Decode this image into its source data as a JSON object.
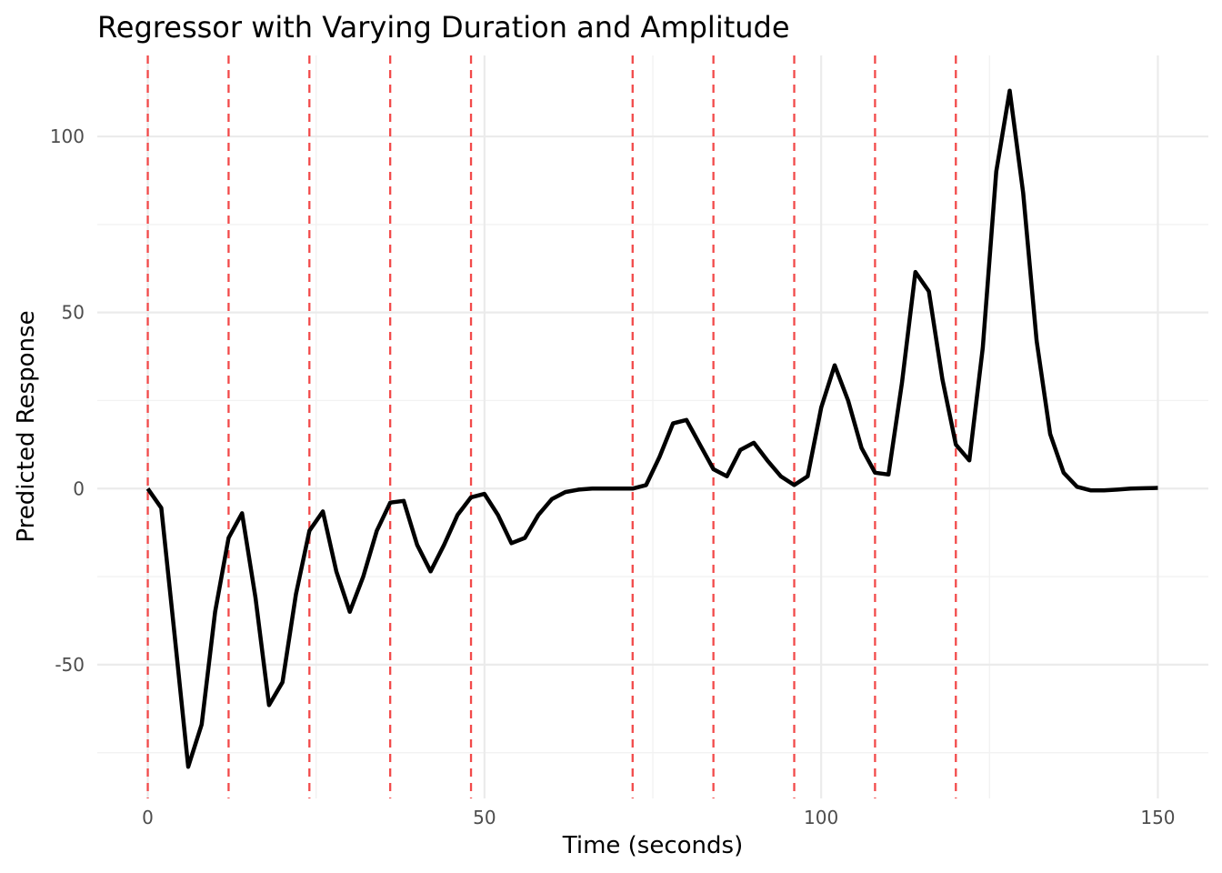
{
  "chart_data": {
    "type": "line",
    "title": "Regressor with Varying Duration and Amplitude",
    "xlabel": "Time (seconds)",
    "ylabel": "Predicted Response",
    "xlim": [
      -7.5,
      157.5
    ],
    "ylim": [
      -88,
      123
    ],
    "x_major_ticks": [
      0,
      50,
      100,
      150
    ],
    "x_minor_ticks": [
      25,
      75,
      125
    ],
    "y_major_ticks": [
      -50,
      0,
      50,
      100
    ],
    "y_minor_ticks": [
      -75,
      -25,
      25,
      75
    ],
    "x_tick_labels": [
      "0",
      "50",
      "100",
      "150"
    ],
    "y_tick_labels": [
      "-50",
      "0",
      "50",
      "100"
    ],
    "grid": true,
    "legend": "none",
    "colors": {
      "line": "#000000",
      "event_lines": "#f24a4a",
      "grid": "#ebebeb"
    },
    "event_onsets": [
      0,
      12,
      24,
      36,
      48,
      72,
      84,
      96,
      108,
      120
    ],
    "series": [
      {
        "x": [
          0,
          2,
          4,
          6,
          8,
          10,
          12,
          14,
          16,
          18,
          20,
          22,
          24,
          26,
          28,
          30,
          32,
          34,
          36,
          38,
          40,
          42,
          44,
          46,
          48,
          50,
          52,
          54,
          56,
          58,
          60,
          62,
          64,
          66,
          68,
          70,
          72,
          74,
          76,
          78,
          80,
          82,
          84,
          86,
          88,
          90,
          92,
          94,
          96,
          98,
          100,
          102,
          104,
          106,
          108,
          110,
          112,
          114,
          116,
          118,
          120,
          122,
          124,
          126,
          128,
          130,
          132,
          134,
          136,
          138,
          140,
          142,
          144,
          146,
          148,
          150
        ],
        "y": [
          0,
          -5.5,
          -42,
          -79,
          -67,
          -35,
          -14,
          -7,
          -31,
          -61.5,
          -55,
          -30,
          -12,
          -6.5,
          -23.5,
          -35,
          -25,
          -12,
          -4,
          -3.5,
          -16,
          -23.5,
          -16,
          -7.5,
          -2.5,
          -1.5,
          -7.5,
          -15.5,
          -14,
          -7.5,
          -3,
          -1,
          -0.3,
          0,
          0,
          0,
          0,
          1,
          9,
          18.5,
          19.5,
          12.5,
          5.5,
          3.5,
          11,
          13,
          8,
          3.5,
          1,
          3.5,
          23,
          35,
          25,
          11.5,
          4.5,
          4,
          30,
          61.5,
          56,
          31,
          12.5,
          8,
          40,
          90,
          113,
          84,
          42,
          15.5,
          4.5,
          0.5,
          -0.5,
          -0.5,
          -0.3,
          0,
          0.1,
          0.2
        ]
      }
    ]
  }
}
